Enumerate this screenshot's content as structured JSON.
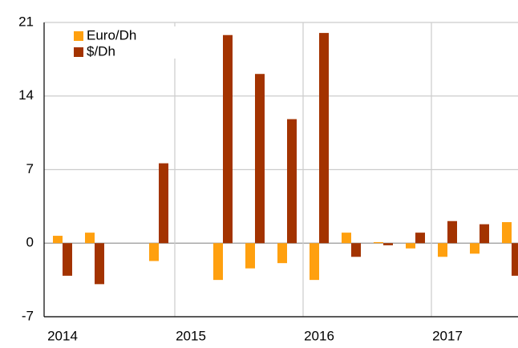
{
  "chart_data": {
    "type": "bar",
    "categories": [
      "2014",
      null,
      null,
      null,
      "2015",
      null,
      null,
      null,
      "2016",
      null,
      null,
      null,
      "2017",
      null,
      null
    ],
    "series": [
      {
        "name": "Euro/Dh",
        "color": "#ffa00f",
        "values": [
          0.7,
          1.0,
          0,
          -1.7,
          0,
          -3.5,
          -2.4,
          -1.9,
          -3.5,
          1.0,
          0.1,
          -0.5,
          -1.3,
          -1.0,
          2.0
        ]
      },
      {
        "name": "$/Dh",
        "color": "#a33300",
        "values": [
          -3.1,
          -3.9,
          0,
          7.6,
          0,
          19.8,
          16.1,
          11.8,
          20.0,
          -1.3,
          -0.2,
          1.0,
          2.1,
          1.8,
          -3.1
        ]
      }
    ],
    "ylim": [
      -7,
      21
    ],
    "yticks": [
      -7,
      0,
      7,
      14,
      21
    ],
    "grid": true,
    "legend": "upper left"
  }
}
